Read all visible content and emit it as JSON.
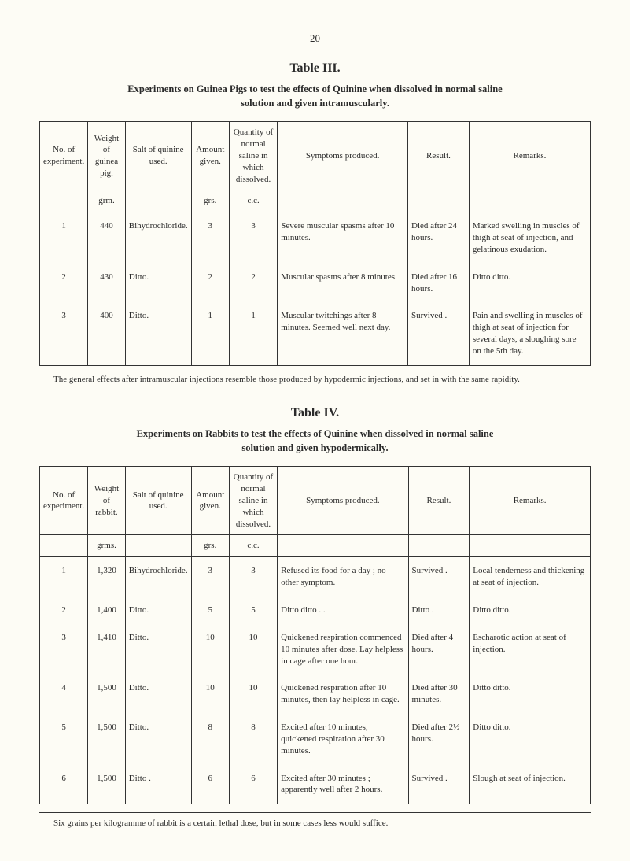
{
  "page_number": "20",
  "table3": {
    "label": "Table III.",
    "title_line1": "Experiments on Guinea Pigs to test the effects of Quinine when dissolved in normal saline",
    "title_line2": "solution and given intramuscularly.",
    "headers": {
      "no": "No. of experiment.",
      "weight": "Weight of guinea pig.",
      "salt": "Salt of quinine used.",
      "amount": "Amount given.",
      "qty": "Quantity of normal saline in which dissolved.",
      "symptoms": "Symptoms produced.",
      "result": "Result.",
      "remarks": "Remarks."
    },
    "units": {
      "weight": "grm.",
      "amount": "grs.",
      "qty": "c.c."
    },
    "rows": [
      {
        "no": "1",
        "weight": "440",
        "salt": "Bihydrochloride.",
        "amount": "3",
        "qty": "3",
        "symptoms": "Severe muscular spasms after 10 minutes.",
        "result": "Died after 24 hours.",
        "remarks": "Marked swelling in muscles of thigh at seat of injection, and gelatinous exudation."
      },
      {
        "no": "2",
        "weight": "430",
        "salt": "Ditto.",
        "amount": "2",
        "qty": "2",
        "symptoms": "Muscular spasms after 8 minutes.",
        "result": "Died after 16 hours.",
        "remarks": "Ditto       ditto."
      },
      {
        "no": "3",
        "weight": "400",
        "salt": "Ditto.",
        "amount": "1",
        "qty": "1",
        "symptoms": "Muscular twitchings after 8 minutes. Seemed well next day.",
        "result": "Survived .",
        "remarks": "Pain and swelling in muscles of thigh at seat of injection for several days, a sloughing sore on the 5th day."
      }
    ],
    "note": "The general effects after intramuscular injections resemble those produced by hypodermic injections, and set in with the same rapidity."
  },
  "table4": {
    "label": "Table IV.",
    "title_line1": "Experiments on Rabbits to test the effects of Quinine when dissolved in normal saline",
    "title_line2": "solution and given hypodermically.",
    "headers": {
      "no": "No. of experiment.",
      "weight": "Weight of rabbit.",
      "salt": "Salt of quinine used.",
      "amount": "Amount given.",
      "qty": "Quantity of normal saline in which dissolved.",
      "symptoms": "Symptoms produced.",
      "result": "Result.",
      "remarks": "Remarks."
    },
    "units": {
      "weight": "grms.",
      "amount": "grs.",
      "qty": "c.c."
    },
    "rows": [
      {
        "no": "1",
        "weight": "1,320",
        "salt": "Bihydrochloride.",
        "amount": "3",
        "qty": "3",
        "symptoms": "Refused its food for a day ; no other symptom.",
        "result": "Survived .",
        "remarks": "Local tenderness and thickening at seat of injection."
      },
      {
        "no": "2",
        "weight": "1,400",
        "salt": "Ditto.",
        "amount": "5",
        "qty": "5",
        "symptoms": "Ditto       ditto   .   .",
        "result": "Ditto   .",
        "remarks": "Ditto       ditto."
      },
      {
        "no": "3",
        "weight": "1,410",
        "salt": "Ditto.",
        "amount": "10",
        "qty": "10",
        "symptoms": "Quickened respiration commenced 10 minutes after dose. Lay helpless in cage after one hour.",
        "result": "Died after 4 hours.",
        "remarks": "Escharotic action at seat of injection."
      },
      {
        "no": "4",
        "weight": "1,500",
        "salt": "Ditto.",
        "amount": "10",
        "qty": "10",
        "symptoms": "Quickened respiration after 10 minutes, then lay helpless in cage.",
        "result": "Died after 30 minutes.",
        "remarks": "Ditto       ditto."
      },
      {
        "no": "5",
        "weight": "1,500",
        "salt": "Ditto.",
        "amount": "8",
        "qty": "8",
        "symptoms": "Excited after 10 minutes, quickened respiration after 30 minutes.",
        "result": "Died after 2½ hours.",
        "remarks": "Ditto       ditto."
      },
      {
        "no": "6",
        "weight": "1,500",
        "salt": "Ditto .",
        "amount": "6",
        "qty": "6",
        "symptoms": "Excited after 30 minutes ; apparently well after 2 hours.",
        "result": "Survived .",
        "remarks": "Slough at seat of injection."
      }
    ],
    "footnote": "Six grains per kilogramme of rabbit is a certain lethal dose, but in some cases less would suffice."
  }
}
